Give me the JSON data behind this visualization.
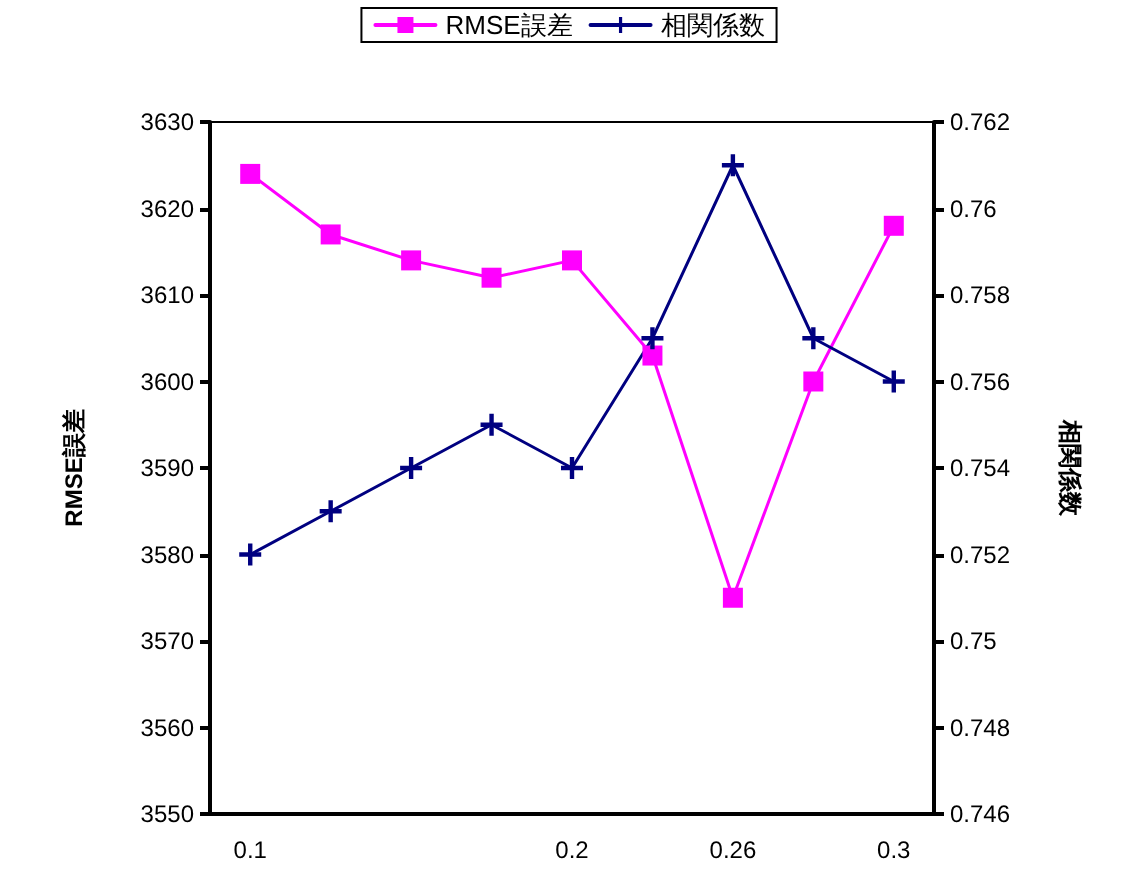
{
  "chart_data": {
    "type": "line",
    "xlabel": null,
    "ylabel": "RMSE誤差",
    "y2label": "相関係数",
    "categories": [
      "0.1",
      null,
      null,
      null,
      "0.2",
      null,
      "0.26",
      null,
      "0.3"
    ],
    "series": [
      {
        "name": "RMSE誤差",
        "color": "#ff00ff",
        "marker": "square",
        "values": [
          3624,
          3617,
          3614,
          3612,
          3614,
          3603,
          3575,
          3600,
          3618
        ]
      },
      {
        "name": "相関係数",
        "color": "#000080",
        "marker": "cross",
        "axis": "y2",
        "values": [
          0.752,
          0.753,
          0.754,
          0.755,
          0.754,
          0.757,
          0.761,
          0.757,
          0.756
        ]
      }
    ],
    "ylim": [
      3550,
      3630
    ],
    "yticks": [
      3550,
      3560,
      3570,
      3580,
      3590,
      3600,
      3610,
      3620,
      3630
    ],
    "y2lim": [
      0.746,
      0.762
    ],
    "y2ticks": [
      0.746,
      0.748,
      0.75,
      0.752,
      0.754,
      0.756,
      0.758,
      0.76,
      0.762
    ],
    "grid": false,
    "legend": "top"
  }
}
